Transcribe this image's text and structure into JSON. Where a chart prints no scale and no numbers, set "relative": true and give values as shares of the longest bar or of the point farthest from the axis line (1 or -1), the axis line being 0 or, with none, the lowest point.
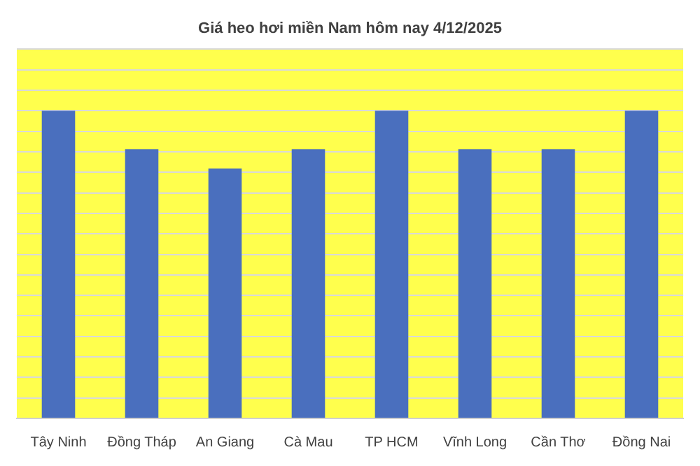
{
  "chart_data": {
    "type": "bar",
    "title": "Giá heo hơi miền Nam hôm nay 4/12/2025",
    "categories": [
      "Tây Ninh",
      "Đồng Tháp",
      "An Giang",
      "Cà Mau",
      "TP HCM",
      "Vĩnh Long",
      "Cần Thơ",
      "Đồng Nai"
    ],
    "values": [
      1,
      0.875,
      0.8125,
      0.875,
      1,
      0.875,
      0.875,
      1
    ],
    "color": "#4a6fbe",
    "relative": true,
    "grid": "y"
  }
}
